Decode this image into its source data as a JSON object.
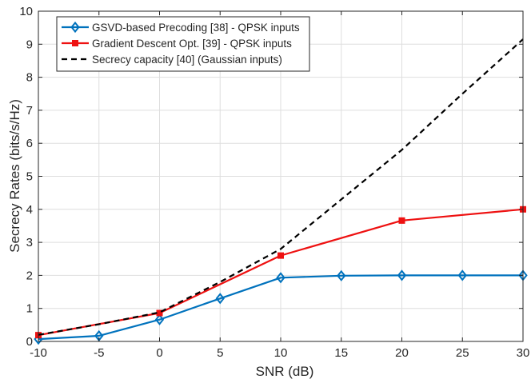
{
  "chart_data": {
    "type": "line",
    "xlabel": "SNR (dB)",
    "ylabel": "Secrecy Rates (bits/s/Hz)",
    "xlim": [
      -10,
      30
    ],
    "ylim": [
      0,
      10
    ],
    "xticks": [
      -10,
      -5,
      0,
      5,
      10,
      15,
      20,
      25,
      30
    ],
    "yticks": [
      0,
      1,
      2,
      3,
      4,
      5,
      6,
      7,
      8,
      9,
      10
    ],
    "grid": true,
    "legend_position": "top-left",
    "series": [
      {
        "name": "GSVD-based Precoding [38] - QPSK inputs",
        "color": "#0072BD",
        "marker": "diamond",
        "line_style": "solid",
        "x": [
          -10,
          -5,
          0,
          5,
          10,
          15,
          20,
          25,
          30
        ],
        "y": [
          0.07,
          0.17,
          0.66,
          1.3,
          1.93,
          1.99,
          2.0,
          2.0,
          2.0
        ]
      },
      {
        "name": "Gradient Descent Opt. [39] - QPSK inputs",
        "color": "#EE1111",
        "marker": "square",
        "line_style": "solid",
        "x": [
          -10,
          0,
          10,
          20,
          30
        ],
        "y": [
          0.19,
          0.86,
          2.6,
          3.66,
          4.0
        ]
      },
      {
        "name": "Secrecy capacity [40] (Gaussian inputs)",
        "color": "#000000",
        "marker": "none",
        "line_style": "dashed",
        "x": [
          -10,
          -5,
          0,
          5,
          10,
          15,
          20,
          25,
          30
        ],
        "y": [
          0.2,
          0.52,
          0.88,
          1.8,
          2.8,
          4.3,
          5.8,
          7.5,
          9.15
        ]
      }
    ]
  }
}
